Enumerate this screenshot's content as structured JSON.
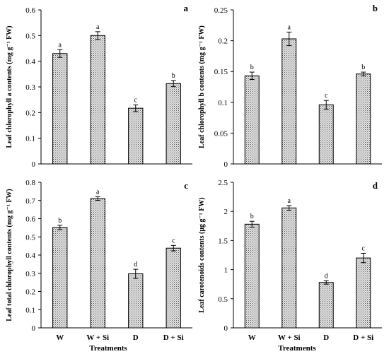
{
  "x_title": "Treatments",
  "chart_data": [
    {
      "type": "bar",
      "panel": "a",
      "ylabel": "Leaf chlorophyll a contents (mg g⁻¹ FW)",
      "ylim": [
        0,
        0.6
      ],
      "yticks": [
        "0",
        "0.1",
        "0.2",
        "0.3",
        "0.4",
        "0.5",
        "0.6"
      ],
      "categories": [
        "W",
        "W + Si",
        "D",
        "D + Si"
      ],
      "values": [
        0.43,
        0.5,
        0.217,
        0.313
      ],
      "errors": [
        0.015,
        0.015,
        0.013,
        0.012
      ],
      "letters": [
        "a",
        "a",
        "c",
        "b"
      ],
      "show_x_labels": false
    },
    {
      "type": "bar",
      "panel": "b",
      "ylabel": "Leaf chlorophyll b contents (mg g⁻¹ FW)",
      "ylim": [
        0,
        0.25
      ],
      "yticks": [
        "0",
        "0.05",
        "0.1",
        "0.15",
        "0.2",
        "0.25"
      ],
      "categories": [
        "W",
        "W + Si",
        "D",
        "D + Si"
      ],
      "values": [
        0.143,
        0.203,
        0.096,
        0.146
      ],
      "errors": [
        0.006,
        0.011,
        0.007,
        0.003
      ],
      "letters": [
        "b",
        "a",
        "c",
        "b"
      ],
      "show_x_labels": false
    },
    {
      "type": "bar",
      "panel": "c",
      "ylabel": "Leaf total chlorophyll contents (mg g⁻¹ FW)",
      "ylim": [
        0,
        0.8
      ],
      "yticks": [
        "0",
        "0.1",
        "0.2",
        "0.3",
        "0.4",
        "0.5",
        "0.6",
        "0.7",
        "0.8"
      ],
      "categories": [
        "W",
        "W + Si",
        "D",
        "D + Si"
      ],
      "values": [
        0.552,
        0.711,
        0.297,
        0.438
      ],
      "errors": [
        0.012,
        0.01,
        0.025,
        0.015
      ],
      "letters": [
        "b",
        "a",
        "d",
        "c"
      ],
      "show_x_labels": true
    },
    {
      "type": "bar",
      "panel": "d",
      "ylabel": "Leaf carotenoids contents (μg g⁻¹ FW)",
      "ylim": [
        0,
        2.5
      ],
      "yticks": [
        "0",
        "0.5",
        "1",
        "1.5",
        "2",
        "2.5"
      ],
      "categories": [
        "W",
        "W + Si",
        "D",
        "D + Si"
      ],
      "values": [
        1.78,
        2.06,
        0.78,
        1.2
      ],
      "errors": [
        0.05,
        0.04,
        0.03,
        0.08
      ],
      "letters": [
        "b",
        "a",
        "d",
        "c"
      ],
      "show_x_labels": true
    }
  ]
}
